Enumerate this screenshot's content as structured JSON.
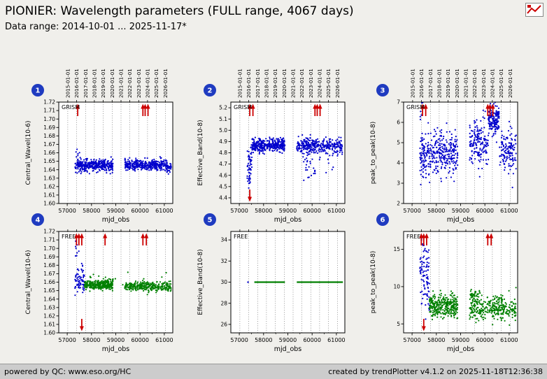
{
  "header": {
    "title": "PIONIER: Wavelength parameters (FULL range, 4067 days)",
    "subtitle": "Data range: 2014-10-01 ... 2025-11-17*"
  },
  "footer": {
    "left": "powered by QC: www.eso.org/HC",
    "right": "created by trendPlotter v4.1.2 on 2025-11-18T12:36:38"
  },
  "colors": {
    "blue": "#0000cc",
    "green": "#008000",
    "red": "#cc0000",
    "badge": "#1f3bc0",
    "grid": "#555555"
  },
  "axes": {
    "x": {
      "label": "mjd_obs",
      "min": 56650,
      "max": 61350,
      "ticks": [
        57000,
        58000,
        59000,
        60000,
        61000
      ],
      "minor_ticks": [
        57500,
        58500,
        59500,
        60500
      ]
    },
    "top_dates": {
      "labels": [
        "2015-01-01",
        "2016-01-01",
        "2017-01-01",
        "2018-01-01",
        "2019-01-01",
        "2020-01-01",
        "2021-01-01",
        "2022-01-01",
        "2023-01-01",
        "2024-01-01",
        "2025-01-01",
        "2026-01-01"
      ],
      "mjd": [
        57023,
        57388,
        57754,
        58119,
        58484,
        58849,
        59215,
        59580,
        59945,
        60310,
        60676,
        61041
      ]
    }
  },
  "chart_data": [
    {
      "id": 1,
      "type": "scatter",
      "group": "GRISM",
      "ylabel": "Central_Wavel(10-6)",
      "ymin": 1.6,
      "ymax": 1.72,
      "yticks": [
        {
          "v": 1.6,
          "l": "1.60"
        },
        {
          "v": 1.61,
          "l": "1.61"
        },
        {
          "v": 1.62,
          "l": "1.62"
        },
        {
          "v": 1.63,
          "l": "1.63"
        },
        {
          "v": 1.64,
          "l": "1.64"
        },
        {
          "v": 1.65,
          "l": "1.65"
        },
        {
          "v": 1.66,
          "l": "1.66"
        },
        {
          "v": 1.67,
          "l": "1.67"
        },
        {
          "v": 1.68,
          "l": "1.68"
        },
        {
          "v": 1.69,
          "l": "1.69"
        },
        {
          "v": 1.7,
          "l": "1.70"
        },
        {
          "v": 1.71,
          "l": "1.71"
        },
        {
          "v": 1.72,
          "l": "1.72"
        }
      ],
      "clusters": [
        {
          "x0": 57320,
          "x1": 58880,
          "n": 380,
          "y": 1.6452,
          "sd": 0.0032,
          "color": "blue"
        },
        {
          "x0": 59370,
          "x1": 61150,
          "n": 340,
          "y": 1.6458,
          "sd": 0.0032,
          "color": "blue"
        },
        {
          "x0": 57340,
          "x1": 57560,
          "n": 10,
          "y": 1.657,
          "sd": 0.005,
          "color": "blue"
        },
        {
          "x0": 61100,
          "x1": 61290,
          "n": 25,
          "y": 1.6405,
          "sd": 0.0028,
          "color": "blue"
        },
        {
          "x0": 57400,
          "x1": 58800,
          "n": 10,
          "y": 1.6365,
          "sd": 0.0018,
          "color": "blue"
        }
      ],
      "lines": [],
      "arrows_up": [
        57430,
        60120,
        60210,
        60330
      ],
      "arrows_down": []
    },
    {
      "id": 2,
      "type": "scatter",
      "group": "GRISM",
      "ylabel": "Effective_Band(10-8)",
      "ymin": 4.35,
      "ymax": 5.25,
      "yticks": [
        {
          "v": 4.4,
          "l": "4.4"
        },
        {
          "v": 4.5,
          "l": "4.5"
        },
        {
          "v": 4.6,
          "l": "4.6"
        },
        {
          "v": 4.7,
          "l": "4.7"
        },
        {
          "v": 4.8,
          "l": "4.8"
        },
        {
          "v": 4.9,
          "l": "4.9"
        },
        {
          "v": 5.0,
          "l": "5.0"
        },
        {
          "v": 5.1,
          "l": "5.1"
        },
        {
          "v": 5.2,
          "l": "5.2"
        }
      ],
      "clusters": [
        {
          "x0": 57320,
          "x1": 57520,
          "n": 50,
          "y": 4.72,
          "sd": 0.07,
          "color": "blue"
        },
        {
          "x0": 57520,
          "x1": 58880,
          "n": 360,
          "y": 4.867,
          "sd": 0.027,
          "color": "blue"
        },
        {
          "x0": 59370,
          "x1": 61250,
          "n": 340,
          "y": 4.862,
          "sd": 0.032,
          "color": "blue"
        },
        {
          "x0": 59650,
          "x1": 60150,
          "n": 28,
          "y": 4.72,
          "sd": 0.08,
          "color": "blue"
        },
        {
          "x0": 57340,
          "x1": 57430,
          "n": 5,
          "y": 4.53,
          "sd": 0.06,
          "color": "blue"
        },
        {
          "x0": 60300,
          "x1": 61000,
          "n": 10,
          "y": 4.71,
          "sd": 0.05,
          "color": "blue"
        }
      ],
      "lines": [],
      "arrows_up": [
        57430,
        57560,
        60120,
        60210,
        60330
      ],
      "arrows_down": [
        57430
      ]
    },
    {
      "id": 3,
      "type": "scatter",
      "group": "GRISM",
      "ylabel": "peak_to_peak(10-8)",
      "ymin": 2,
      "ymax": 7,
      "yticks": [
        {
          "v": 2,
          "l": "2"
        },
        {
          "v": 3,
          "l": "3"
        },
        {
          "v": 4,
          "l": "4"
        },
        {
          "v": 5,
          "l": "5"
        },
        {
          "v": 6,
          "l": "6"
        },
        {
          "v": 7,
          "l": "7"
        }
      ],
      "clusters": [
        {
          "x0": 57320,
          "x1": 58880,
          "n": 360,
          "y": 4.45,
          "sd": 0.55,
          "color": "blue"
        },
        {
          "x0": 59370,
          "x1": 60150,
          "n": 170,
          "y": 5.0,
          "sd": 0.55,
          "color": "blue"
        },
        {
          "x0": 60150,
          "x1": 60600,
          "n": 160,
          "y": 6.15,
          "sd": 0.32,
          "color": "blue"
        },
        {
          "x0": 60600,
          "x1": 61290,
          "n": 130,
          "y": 4.55,
          "sd": 0.45,
          "color": "blue"
        },
        {
          "x0": 57330,
          "x1": 57450,
          "n": 6,
          "y": 6.5,
          "sd": 0.3,
          "color": "blue"
        }
      ],
      "lines": [],
      "arrows_up": [
        57430,
        57560,
        60120,
        60210,
        60330
      ],
      "arrows_down": []
    },
    {
      "id": 4,
      "type": "scatter",
      "group": "FREE",
      "ylabel": "Central_Wavel(10-6)",
      "ymin": 1.6,
      "ymax": 1.72,
      "yticks": [
        {
          "v": 1.6,
          "l": "1.60"
        },
        {
          "v": 1.61,
          "l": "1.61"
        },
        {
          "v": 1.62,
          "l": "1.62"
        },
        {
          "v": 1.63,
          "l": "1.63"
        },
        {
          "v": 1.64,
          "l": "1.64"
        },
        {
          "v": 1.65,
          "l": "1.65"
        },
        {
          "v": 1.66,
          "l": "1.66"
        },
        {
          "v": 1.67,
          "l": "1.67"
        },
        {
          "v": 1.68,
          "l": "1.68"
        },
        {
          "v": 1.69,
          "l": "1.69"
        },
        {
          "v": 1.7,
          "l": "1.70"
        },
        {
          "v": 1.71,
          "l": "1.71"
        },
        {
          "v": 1.72,
          "l": "1.72"
        }
      ],
      "clusters": [
        {
          "x0": 57320,
          "x1": 57720,
          "n": 70,
          "y": 1.661,
          "sd": 0.007,
          "color": "blue"
        },
        {
          "x0": 57330,
          "x1": 57480,
          "n": 8,
          "y": 1.701,
          "sd": 0.006,
          "color": "blue"
        },
        {
          "x0": 57720,
          "x1": 58880,
          "n": 320,
          "y": 1.6565,
          "sd": 0.0028,
          "color": "green"
        },
        {
          "x0": 59370,
          "x1": 61290,
          "n": 310,
          "y": 1.655,
          "sd": 0.0028,
          "color": "green"
        },
        {
          "x0": 57900,
          "x1": 61200,
          "n": 18,
          "y": 1.666,
          "sd": 0.005,
          "color": "green"
        }
      ],
      "lines": [],
      "arrows_up": [
        57380,
        57480,
        57600,
        58560,
        60120,
        60260
      ],
      "arrows_down": [
        57600
      ]
    },
    {
      "id": 5,
      "type": "scatter",
      "group": "FREE",
      "ylabel": "Effective_Band(10-8)",
      "ymin": 25.2,
      "ymax": 34.8,
      "yticks": [
        {
          "v": 26,
          "l": "26"
        },
        {
          "v": 28,
          "l": "28"
        },
        {
          "v": 30,
          "l": "30"
        },
        {
          "v": 32,
          "l": "32"
        },
        {
          "v": 34,
          "l": "34"
        }
      ],
      "clusters": [
        {
          "x0": 57340,
          "x1": 57370,
          "n": 2,
          "y": 30.0,
          "sd": 0.0,
          "color": "blue"
        }
      ],
      "lines": [
        {
          "x0": 57620,
          "x1": 58880,
          "y": 30,
          "color": "green"
        },
        {
          "x0": 59370,
          "x1": 61270,
          "y": 30,
          "color": "green"
        }
      ],
      "arrows_up": [],
      "arrows_down": []
    },
    {
      "id": 6,
      "type": "scatter",
      "group": "FREE",
      "ylabel": "peak_to_peak(10-8)",
      "ymin": 3.8,
      "ymax": 17.4,
      "yticks": [
        {
          "v": 5,
          "l": "5"
        },
        {
          "v": 10,
          "l": "10"
        },
        {
          "v": 15,
          "l": "15"
        }
      ],
      "clusters": [
        {
          "x0": 57320,
          "x1": 57720,
          "n": 90,
          "y": 11.5,
          "sd": 2.5,
          "color": "blue"
        },
        {
          "x0": 57340,
          "x1": 57500,
          "n": 6,
          "y": 16.4,
          "sd": 0.4,
          "color": "blue"
        },
        {
          "x0": 57720,
          "x1": 58880,
          "n": 320,
          "y": 7.4,
          "sd": 0.75,
          "color": "green"
        },
        {
          "x0": 59370,
          "x1": 61290,
          "n": 320,
          "y": 7.1,
          "sd": 0.8,
          "color": "green"
        },
        {
          "x0": 59400,
          "x1": 59800,
          "n": 40,
          "y": 8.8,
          "sd": 0.5,
          "color": "green"
        }
      ],
      "lines": [],
      "arrows_up": [
        57380,
        57480,
        57600,
        60120,
        60260
      ],
      "arrows_down": [
        57480
      ]
    }
  ]
}
